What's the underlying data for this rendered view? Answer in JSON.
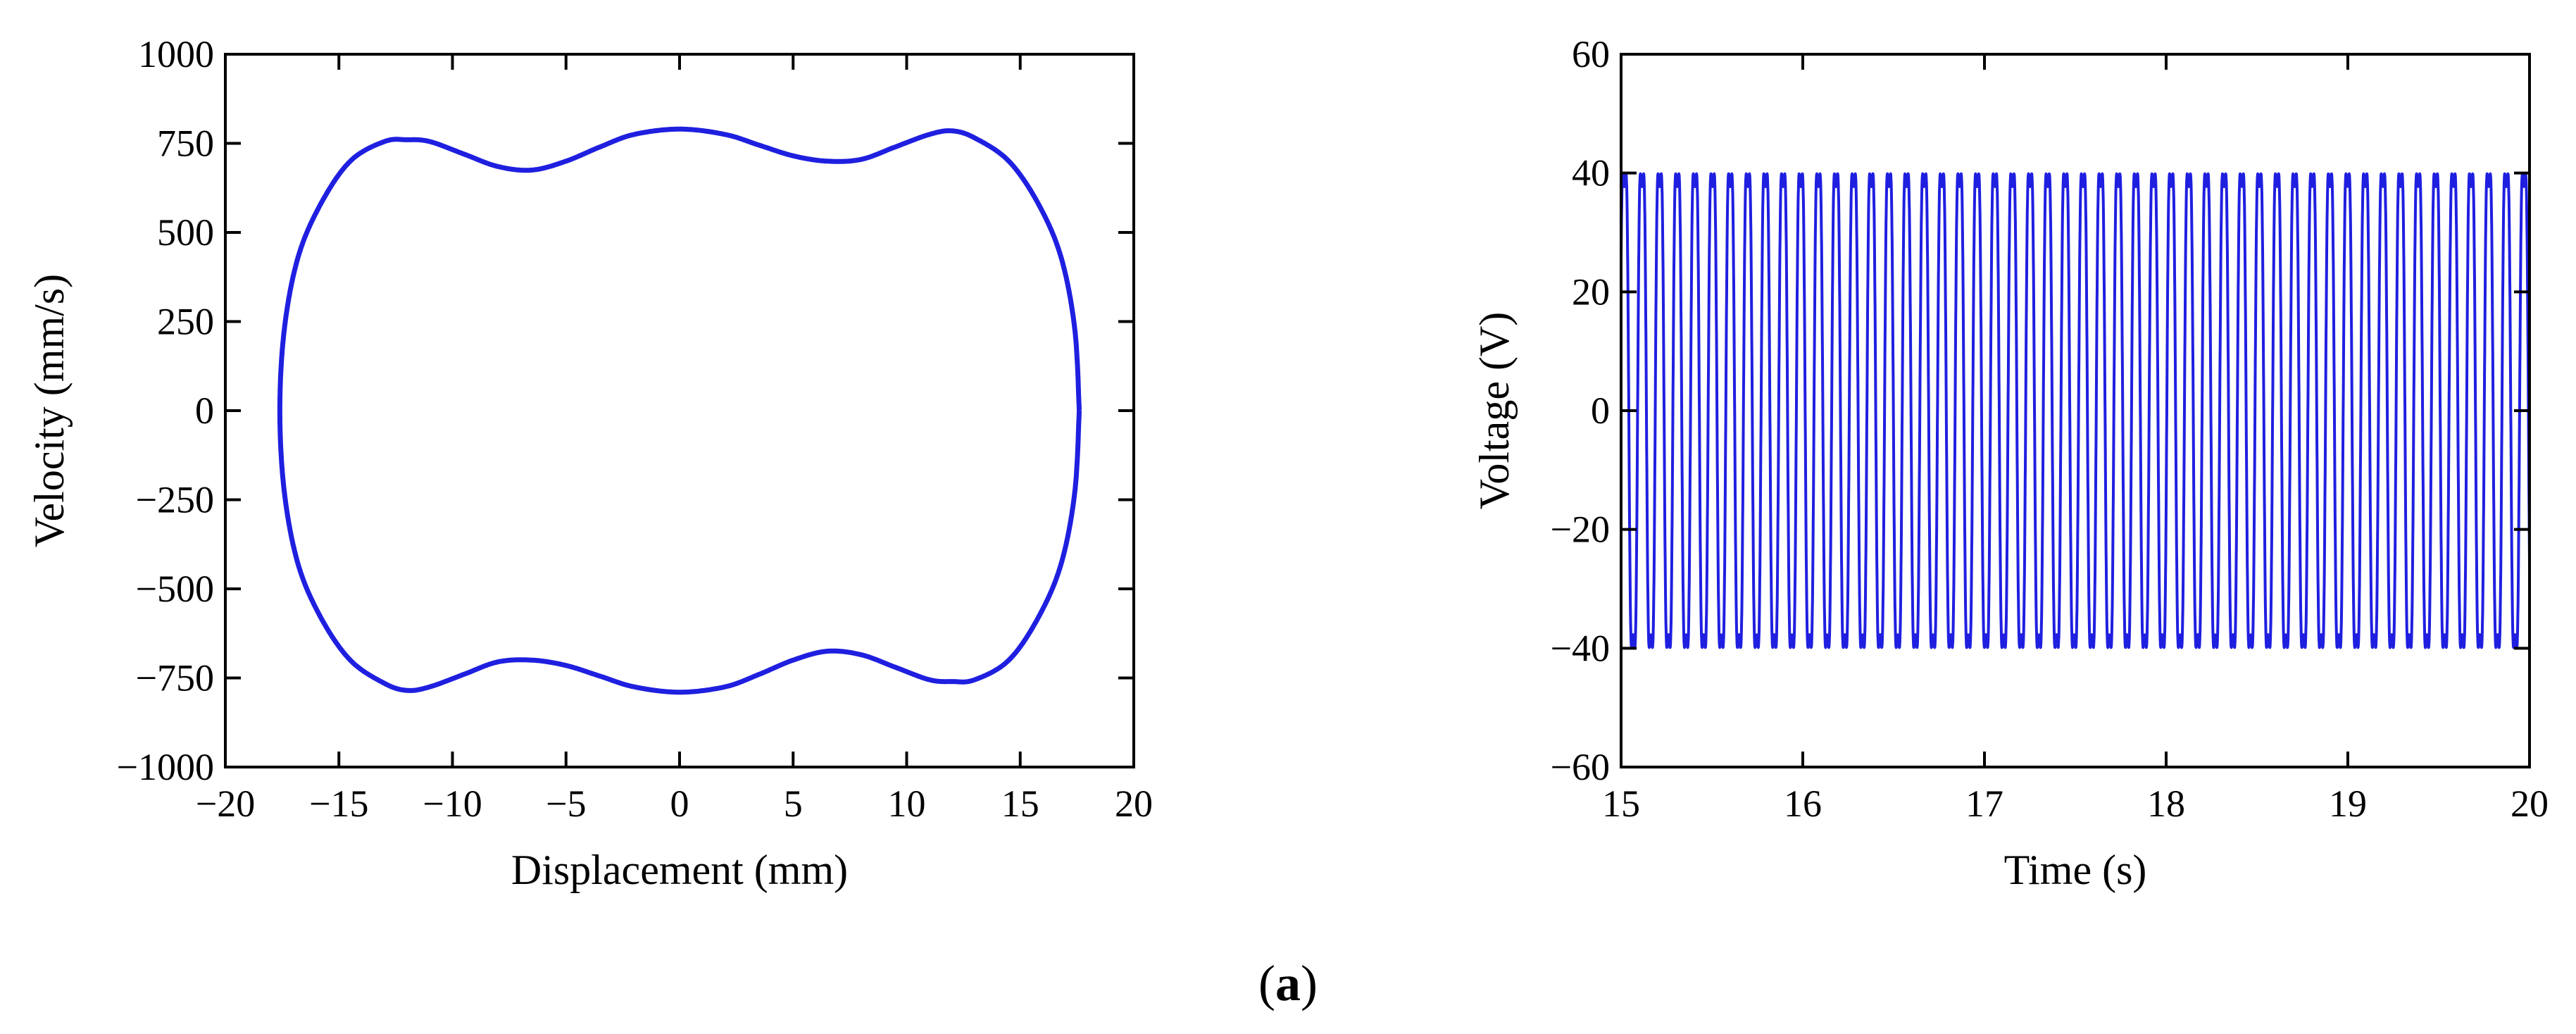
{
  "caption": {
    "open": "(",
    "letter": "a",
    "close": ")"
  },
  "chart_data": [
    {
      "type": "line",
      "title": "",
      "xlabel": "Displacement (mm)",
      "ylabel": "Velocity (mm/s)",
      "xlim": [
        -20,
        20
      ],
      "ylim": [
        -1000,
        1000
      ],
      "xticks": [
        -20,
        -15,
        -10,
        -5,
        0,
        5,
        10,
        15,
        20
      ],
      "yticks": [
        -1000,
        -750,
        -500,
        -250,
        0,
        250,
        500,
        750,
        1000
      ],
      "xtick_labels": [
        "−20",
        "−15",
        "−10",
        "−5",
        "0",
        "5",
        "10",
        "15",
        "20"
      ],
      "ytick_labels": [
        "−1000",
        "−750",
        "−500",
        "−250",
        "0",
        "250",
        "500",
        "750",
        "1000"
      ],
      "grid": false,
      "color": "#1f1fe0",
      "series": [
        {
          "x": [
            17.6,
            17.4,
            16.8,
            15.8,
            14.5,
            13.0,
            12.0,
            11.0,
            9.5,
            8.0,
            6.5,
            5.0,
            3.5,
            2.0,
            0.0,
            -2.0,
            -3.5,
            -5.0,
            -6.5,
            -8.0,
            -9.5,
            -11.0,
            -12.0,
            -13.0,
            -14.5,
            -15.8,
            -16.8,
            -17.4,
            -17.6,
            -17.4,
            -16.8,
            -15.8,
            -14.5,
            -13.0,
            -12.0,
            -11.0,
            -9.5,
            -8.0,
            -6.5,
            -5.0,
            -3.5,
            -2.0,
            0.0,
            2.0,
            3.5,
            5.0,
            6.5,
            8.0,
            9.5,
            11.0,
            12.0,
            13.0,
            14.5,
            15.8,
            16.8,
            17.4,
            17.6
          ],
          "y": [
            0,
            230,
            430,
            580,
            700,
            765,
            785,
            775,
            740,
            705,
            700,
            715,
            745,
            775,
            790,
            775,
            740,
            700,
            675,
            685,
            720,
            755,
            760,
            755,
            700,
            580,
            430,
            230,
            0,
            -230,
            -430,
            -580,
            -700,
            -765,
            -785,
            -775,
            -740,
            -705,
            -700,
            -715,
            -745,
            -775,
            -790,
            -775,
            -740,
            -700,
            -675,
            -685,
            -720,
            -755,
            -760,
            -755,
            -700,
            -580,
            -430,
            -230,
            0
          ]
        }
      ]
    },
    {
      "type": "line",
      "title": "",
      "xlabel": "Time (s)",
      "ylabel": "Voltage (V)",
      "xlim": [
        15,
        20
      ],
      "ylim": [
        -60,
        60
      ],
      "xticks": [
        15,
        16,
        17,
        18,
        19,
        20
      ],
      "yticks": [
        -60,
        -40,
        -20,
        0,
        20,
        40,
        60
      ],
      "xtick_labels": [
        "15",
        "16",
        "17",
        "18",
        "19",
        "20"
      ],
      "ytick_labels": [
        "−60",
        "−40",
        "−20",
        "0",
        "20",
        "40",
        "60"
      ],
      "grid": false,
      "color": "#1f1fe0",
      "series": [
        {
          "waveform": "periodic",
          "amplitude": 46,
          "cycles_per_second": 10.3,
          "x_start": 15,
          "x_end": 20
        }
      ]
    }
  ]
}
